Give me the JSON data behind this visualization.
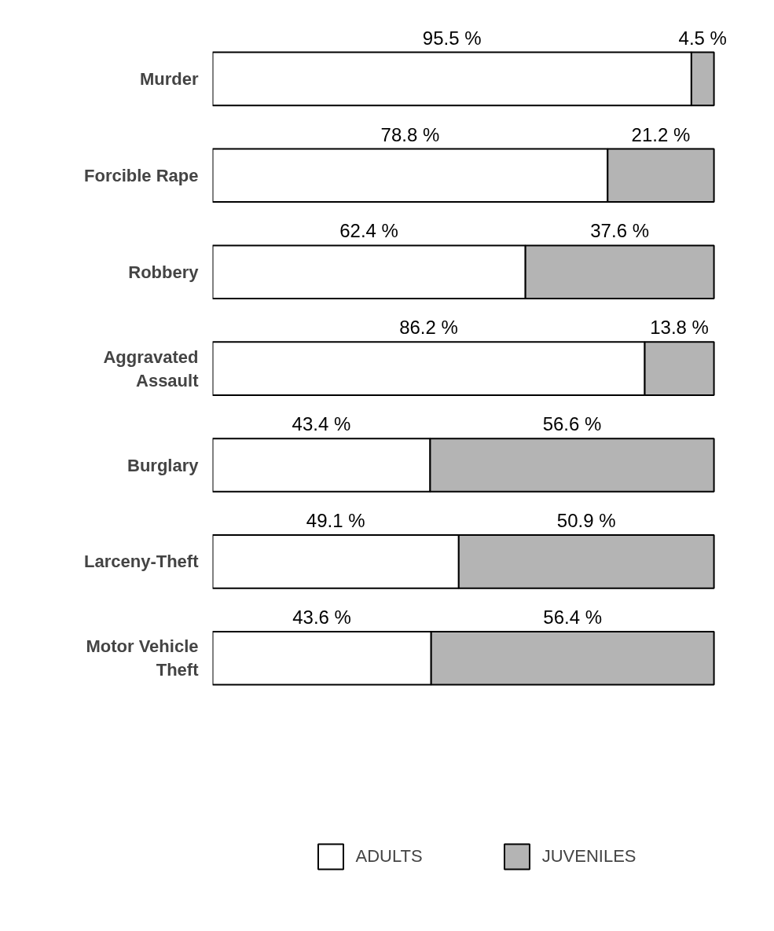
{
  "chart_data": {
    "type": "bar",
    "orientation": "horizontal",
    "stacked": true,
    "grid": false,
    "legend": "bottom",
    "categories": [
      "Murder",
      "Forcible Rape",
      "Robbery",
      "Aggravated Assault",
      "Burglary",
      "Larceny-Theft",
      "Motor Vehicle Theft"
    ],
    "series": [
      {
        "name": "ADULTS",
        "color": "#ffffff",
        "values": [
          95.5,
          78.8,
          62.4,
          86.2,
          43.4,
          49.1,
          43.6
        ],
        "value_labels": [
          "95.5 %",
          "78.8 %",
          "62.4 %",
          "86.2 %",
          "43.4 %",
          "49.1 %",
          "43.6 %"
        ]
      },
      {
        "name": "JUVENILES",
        "color": "#b4b4b4",
        "values": [
          4.5,
          21.2,
          37.6,
          13.8,
          56.6,
          50.9,
          56.4
        ],
        "value_labels": [
          "4.5 %",
          "21.2 %",
          "37.6 %",
          "13.8 %",
          "56.6 %",
          "50.9 %",
          "56.4 %"
        ]
      }
    ]
  }
}
